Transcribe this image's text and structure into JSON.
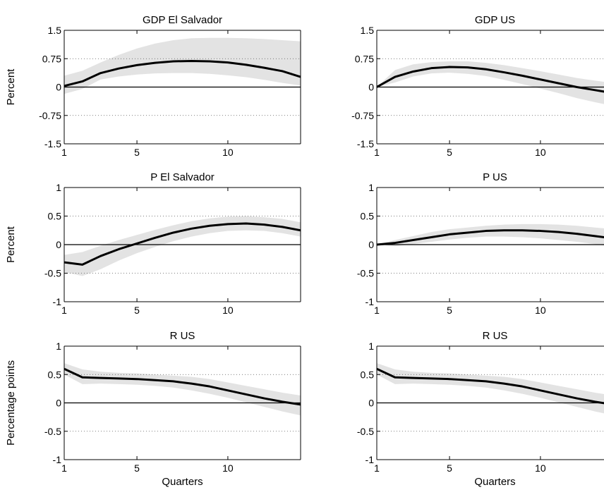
{
  "chart_data": [
    {
      "type": "line",
      "title": "GDP El Salvador",
      "ylabel": "Percent",
      "xlabel": "",
      "xlim": [
        1,
        14
      ],
      "ylim": [
        -1.5,
        1.5
      ],
      "xticks": [
        1,
        5,
        10
      ],
      "xtick_labels": [
        "1",
        "5",
        "10"
      ],
      "yticks": [
        -1.5,
        -0.75,
        0,
        0.75,
        1.5
      ],
      "ytick_labels": [
        "-1.5",
        "-0.75",
        "0",
        "0.75",
        "1.5"
      ],
      "grid": "dotted horizontal at y ticks",
      "x": [
        1,
        2,
        3,
        4,
        5,
        6,
        7,
        8,
        9,
        10,
        11,
        12,
        13,
        14
      ],
      "series": [
        {
          "values": [
            0.03,
            0.15,
            0.37,
            0.49,
            0.58,
            0.64,
            0.68,
            0.69,
            0.68,
            0.65,
            0.59,
            0.51,
            0.42,
            0.27
          ]
        }
      ],
      "band": {
        "lower": [
          -0.18,
          -0.05,
          0.2,
          0.28,
          0.33,
          0.36,
          0.37,
          0.37,
          0.35,
          0.31,
          0.26,
          0.19,
          0.11,
          0.04
        ],
        "upper": [
          0.3,
          0.43,
          0.65,
          0.85,
          1.02,
          1.15,
          1.24,
          1.29,
          1.3,
          1.3,
          1.29,
          1.27,
          1.24,
          1.21
        ]
      }
    },
    {
      "type": "line",
      "title": "GDP US",
      "ylabel": "",
      "xlabel": "",
      "xlim": [
        1,
        14
      ],
      "ylim": [
        -1.5,
        1.5
      ],
      "xticks": [
        1,
        5,
        10
      ],
      "xtick_labels": [
        "1",
        "5",
        "10"
      ],
      "yticks": [
        -1.5,
        -0.75,
        0,
        0.75,
        1.5
      ],
      "ytick_labels": [
        "-1.5",
        "-0.75",
        "0",
        "0.75",
        "1.5"
      ],
      "grid": "dotted horizontal at y ticks",
      "x": [
        1,
        2,
        3,
        4,
        5,
        6,
        7,
        8,
        9,
        10,
        11,
        12,
        13,
        14
      ],
      "series": [
        {
          "values": [
            0.0,
            0.27,
            0.41,
            0.5,
            0.53,
            0.52,
            0.47,
            0.39,
            0.3,
            0.2,
            0.1,
            0.0,
            -0.08,
            -0.16
          ]
        }
      ],
      "band": {
        "lower": [
          0.0,
          0.12,
          0.28,
          0.36,
          0.38,
          0.35,
          0.29,
          0.19,
          0.08,
          -0.04,
          -0.16,
          -0.29,
          -0.4,
          -0.5
        ],
        "upper": [
          0.0,
          0.45,
          0.6,
          0.66,
          0.68,
          0.68,
          0.64,
          0.58,
          0.5,
          0.42,
          0.33,
          0.24,
          0.17,
          0.11
        ]
      }
    },
    {
      "type": "line",
      "title": "P El Salvador",
      "ylabel": "Percent",
      "xlabel": "",
      "xlim": [
        1,
        14
      ],
      "ylim": [
        -1,
        1
      ],
      "xticks": [
        1,
        5,
        10
      ],
      "xtick_labels": [
        "1",
        "5",
        "10"
      ],
      "yticks": [
        -1,
        -0.5,
        0,
        0.5,
        1
      ],
      "ytick_labels": [
        "-1",
        "-0.5",
        "0",
        "0.5",
        "1"
      ],
      "grid": "dotted horizontal at y ticks",
      "x": [
        1,
        2,
        3,
        4,
        5,
        6,
        7,
        8,
        9,
        10,
        11,
        12,
        13,
        14
      ],
      "series": [
        {
          "values": [
            -0.31,
            -0.35,
            -0.2,
            -0.08,
            0.02,
            0.12,
            0.21,
            0.28,
            0.33,
            0.36,
            0.37,
            0.35,
            0.31,
            0.25
          ]
        }
      ],
      "band": {
        "lower": [
          -0.48,
          -0.55,
          -0.43,
          -0.28,
          -0.15,
          -0.04,
          0.06,
          0.14,
          0.2,
          0.24,
          0.25,
          0.24,
          0.2,
          0.14
        ],
        "upper": [
          -0.18,
          -0.13,
          -0.02,
          0.08,
          0.17,
          0.26,
          0.34,
          0.41,
          0.46,
          0.49,
          0.5,
          0.48,
          0.45,
          0.39
        ]
      }
    },
    {
      "type": "line",
      "title": "P US",
      "ylabel": "",
      "xlabel": "",
      "xlim": [
        1,
        14
      ],
      "ylim": [
        -1,
        1
      ],
      "xticks": [
        1,
        5,
        10
      ],
      "xtick_labels": [
        "1",
        "5",
        "10"
      ],
      "yticks": [
        -1,
        -0.5,
        0,
        0.5,
        1
      ],
      "ytick_labels": [
        "-1",
        "-0.5",
        "0",
        "0.5",
        "1"
      ],
      "grid": "dotted horizontal at y ticks",
      "x": [
        1,
        2,
        3,
        4,
        5,
        6,
        7,
        8,
        9,
        10,
        11,
        12,
        13,
        14
      ],
      "series": [
        {
          "values": [
            0.0,
            0.03,
            0.08,
            0.13,
            0.18,
            0.21,
            0.24,
            0.25,
            0.25,
            0.24,
            0.22,
            0.19,
            0.15,
            0.11
          ]
        }
      ],
      "band": {
        "lower": [
          0.0,
          -0.03,
          0.01,
          0.05,
          0.09,
          0.12,
          0.14,
          0.14,
          0.13,
          0.11,
          0.08,
          0.05,
          0.01,
          -0.04
        ],
        "upper": [
          0.0,
          0.08,
          0.15,
          0.22,
          0.27,
          0.3,
          0.33,
          0.35,
          0.36,
          0.36,
          0.35,
          0.33,
          0.3,
          0.27
        ]
      }
    },
    {
      "type": "line",
      "title": "R US",
      "ylabel": "Percentage points",
      "xlabel": "Quarters",
      "xlim": [
        1,
        14
      ],
      "ylim": [
        -1,
        1
      ],
      "xticks": [
        1,
        5,
        10
      ],
      "xtick_labels": [
        "1",
        "5",
        "10"
      ],
      "yticks": [
        -1,
        -0.5,
        0,
        0.5,
        1
      ],
      "ytick_labels": [
        "-1",
        "-0.5",
        "0",
        "0.5",
        "1"
      ],
      "grid": "dotted horizontal at y ticks",
      "x": [
        1,
        2,
        3,
        4,
        5,
        6,
        7,
        8,
        9,
        10,
        11,
        12,
        13,
        14
      ],
      "series": [
        {
          "values": [
            0.6,
            0.45,
            0.44,
            0.43,
            0.42,
            0.4,
            0.38,
            0.34,
            0.29,
            0.22,
            0.15,
            0.08,
            0.02,
            -0.03
          ]
        }
      ],
      "band": {
        "lower": [
          0.5,
          0.33,
          0.34,
          0.33,
          0.32,
          0.3,
          0.27,
          0.22,
          0.16,
          0.09,
          0.01,
          -0.07,
          -0.15,
          -0.22
        ],
        "upper": [
          0.7,
          0.59,
          0.55,
          0.53,
          0.52,
          0.5,
          0.48,
          0.46,
          0.42,
          0.36,
          0.3,
          0.24,
          0.18,
          0.13
        ]
      }
    },
    {
      "type": "line",
      "title": "R US",
      "ylabel": "",
      "xlabel": "Quarters",
      "xlim": [
        1,
        14
      ],
      "ylim": [
        -1,
        1
      ],
      "xticks": [
        1,
        5,
        10
      ],
      "xtick_labels": [
        "1",
        "5",
        "10"
      ],
      "yticks": [
        -1,
        -0.5,
        0,
        0.5,
        1
      ],
      "ytick_labels": [
        "-1",
        "-0.5",
        "0",
        "0.5",
        "1"
      ],
      "grid": "dotted horizontal at y ticks",
      "x": [
        1,
        2,
        3,
        4,
        5,
        6,
        7,
        8,
        9,
        10,
        11,
        12,
        13,
        14
      ],
      "series": [
        {
          "values": [
            0.6,
            0.45,
            0.44,
            0.43,
            0.42,
            0.4,
            0.38,
            0.34,
            0.29,
            0.22,
            0.15,
            0.08,
            0.02,
            -0.03
          ]
        }
      ],
      "band": {
        "lower": [
          0.5,
          0.33,
          0.34,
          0.33,
          0.32,
          0.3,
          0.27,
          0.22,
          0.16,
          0.09,
          0.01,
          -0.07,
          -0.15,
          -0.22
        ],
        "upper": [
          0.7,
          0.59,
          0.55,
          0.53,
          0.52,
          0.5,
          0.48,
          0.46,
          0.42,
          0.36,
          0.3,
          0.24,
          0.18,
          0.13
        ]
      }
    }
  ],
  "colors": {
    "line": "#000000",
    "band": "#e3e3e3",
    "grid": "#555555",
    "axis": "#000000"
  }
}
